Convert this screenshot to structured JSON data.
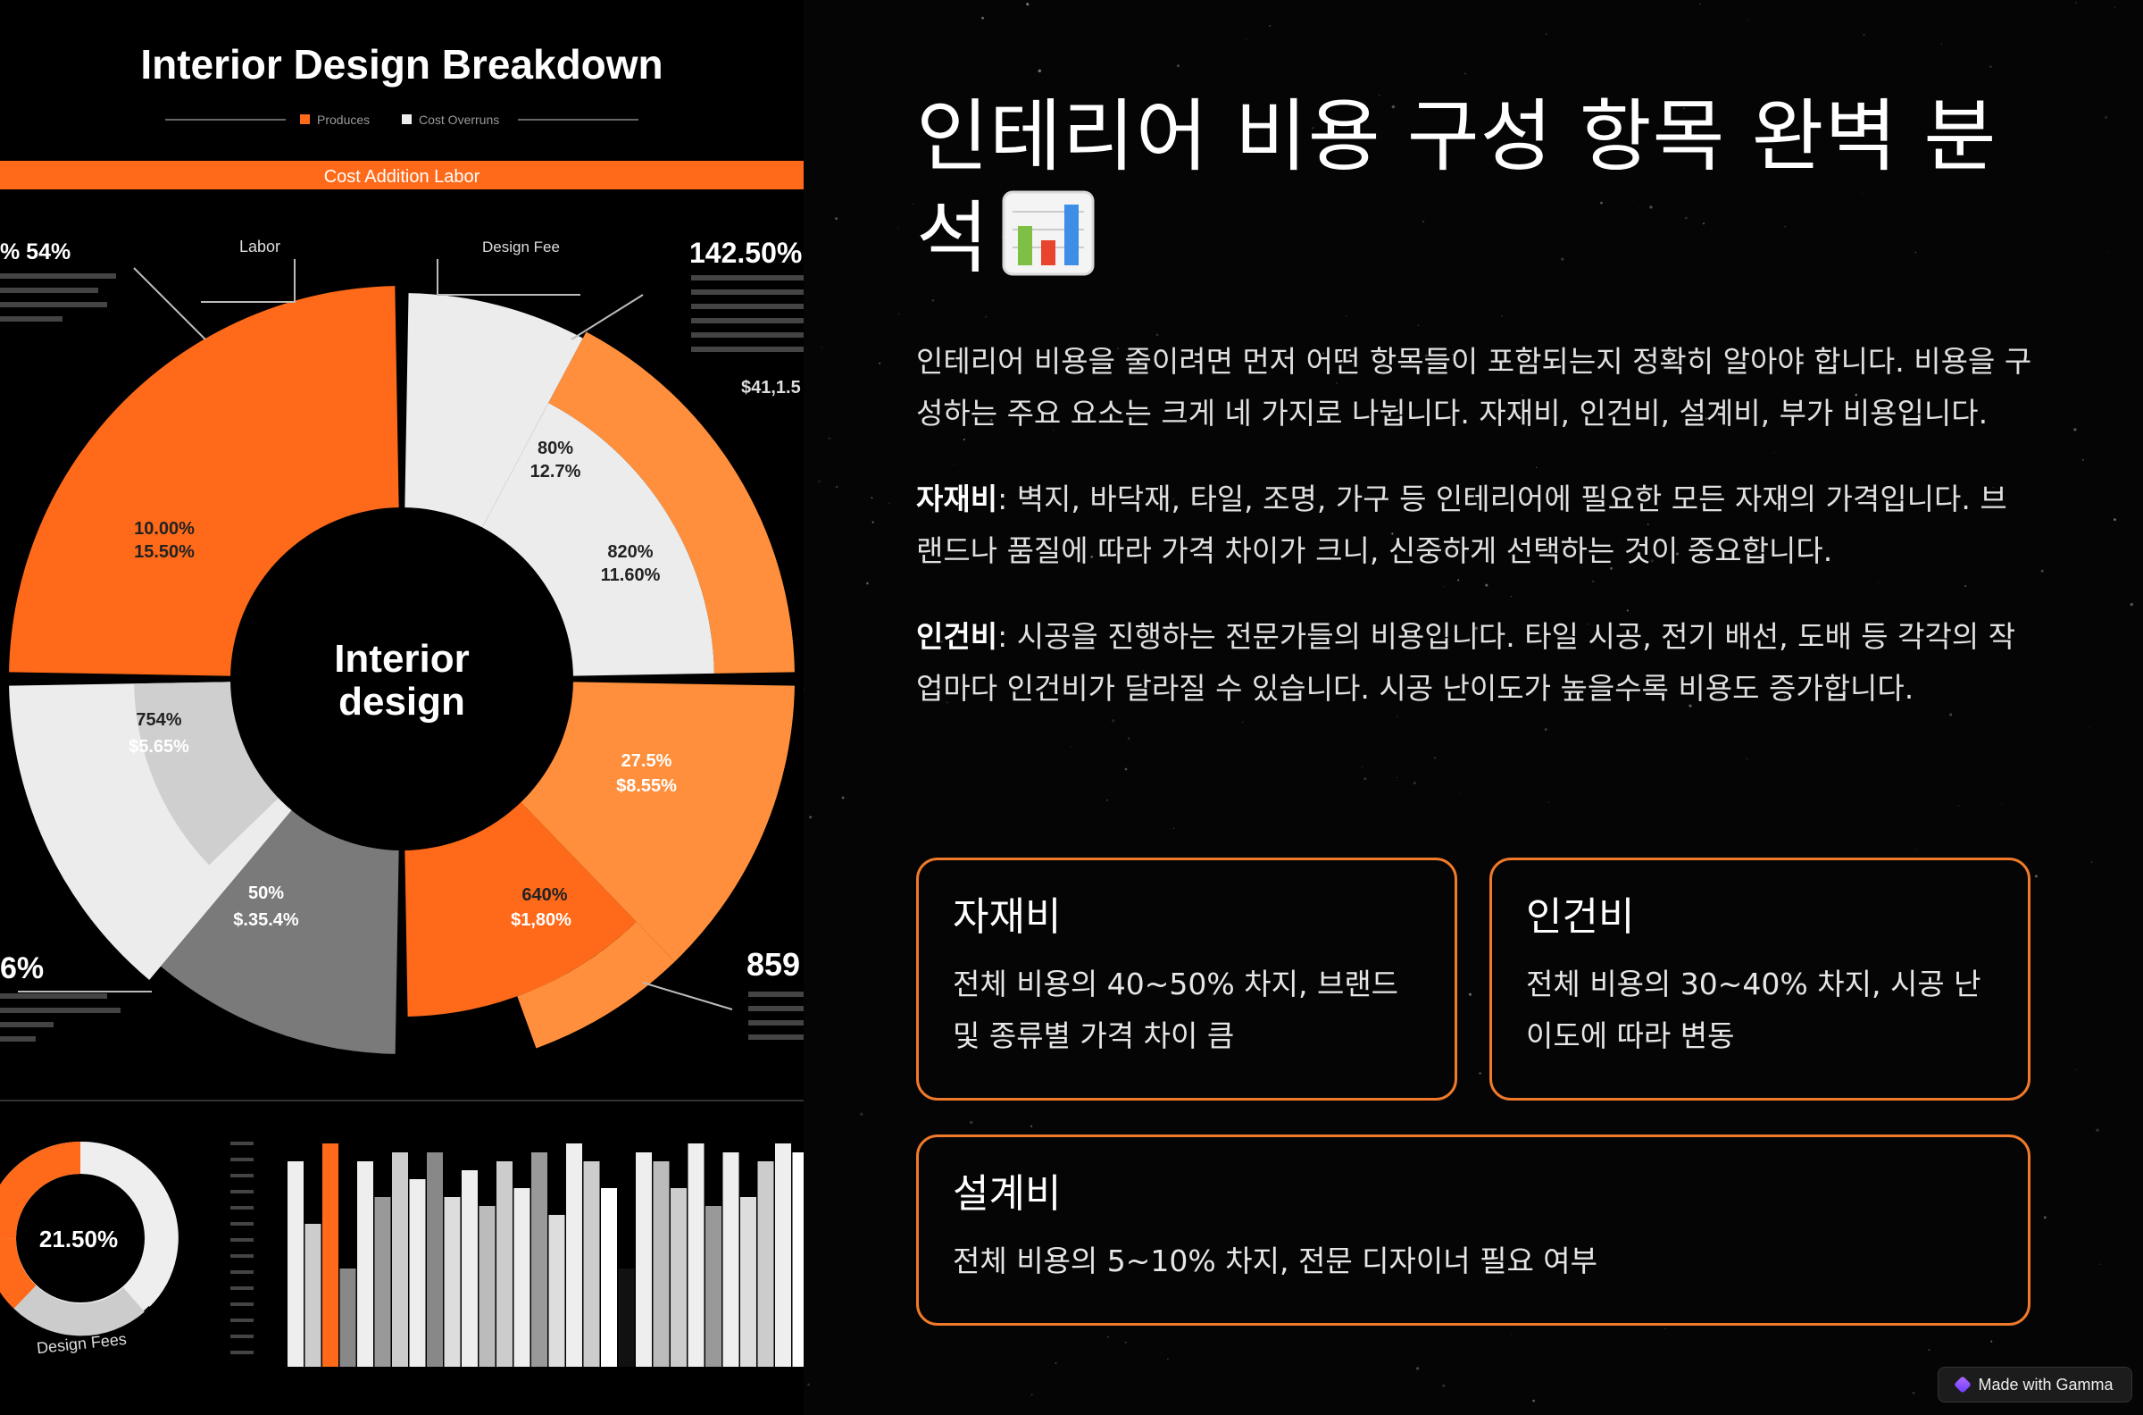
{
  "infographic": {
    "title": "Interior Design Breakdown",
    "legend": [
      "Produces",
      "Cost Overruns"
    ],
    "banner": "Cost Addition Labor",
    "center_label_1": "Interior",
    "center_label_2": "design",
    "callout_labor": "Labor",
    "callout_design_fee": "Design Fee",
    "left_pct": "% 54%",
    "right_pct": "142.50%",
    "right_small": "$41,1.5",
    "bottom_left_pct": "6%",
    "bottom_right_pct": "859",
    "seg_white_1": "80%",
    "seg_white_2": "12.7%",
    "seg_white_3": "820%",
    "seg_white_4": "11.60%",
    "seg_orange_1": "10.00%",
    "seg_orange_2": "15.50%",
    "seg_grey_1": "754%",
    "seg_grey_2": "$5.65%",
    "seg_dark_1": "50%",
    "seg_dark_2": "$.35.4%",
    "seg_red_1": "640%",
    "seg_red_2": "$1,80%",
    "seg_br_1": "27.5%",
    "seg_br_2": "$8.55%",
    "donut_value": "21.50%",
    "donut_label": "Design Fees",
    "colors": {
      "orange": "#ff6a1a",
      "light_orange": "#ff8f3c",
      "white": "#ececec",
      "grey": "#9e9e9e",
      "dark_grey": "#7a7a7a"
    }
  },
  "slide": {
    "title": "인테리어 비용 구성 항목 완벽 분석",
    "title_emoji": "bar-chart-emoji",
    "intro": "인테리어 비용을 줄이려면 먼저 어떤 항목들이 포함되는지 정확히 알아야 합니다. 비용을 구성하는 주요 요소는 크게 네 가지로 나뉩니다. 자재비, 인건비, 설계비, 부가 비용입니다.",
    "materials_term": "자재비",
    "materials_desc": ": 벽지, 바닥재, 타일, 조명, 가구 등 인테리어에 필요한 모든 자재의 가격입니다. 브랜드나 품질에 따라 가격 차이가 크니, 신중하게 선택하는 것이 중요합니다.",
    "labor_term": "인건비",
    "labor_desc": ": 시공을 진행하는 전문가들의 비용입니다. 타일 시공, 전기 배선, 도배 등 각각의 작업마다 인건비가 달라질 수 있습니다. 시공 난이도가 높을수록 비용도 증가합니다."
  },
  "cards": [
    {
      "title": "자재비",
      "text": "전체 비용의 40~50% 차지, 브랜드 및 종류별 가격 차이 큼"
    },
    {
      "title": "인건비",
      "text": "전체 비용의 30~40% 차지, 시공 난이도에 따라 변동"
    },
    {
      "title": "설계비",
      "text": "전체 비용의 5~10% 차지, 전문 디자이너 필요 여부"
    }
  ],
  "badge": {
    "label": "Made with Gamma",
    "accent": "#f07a2a"
  }
}
